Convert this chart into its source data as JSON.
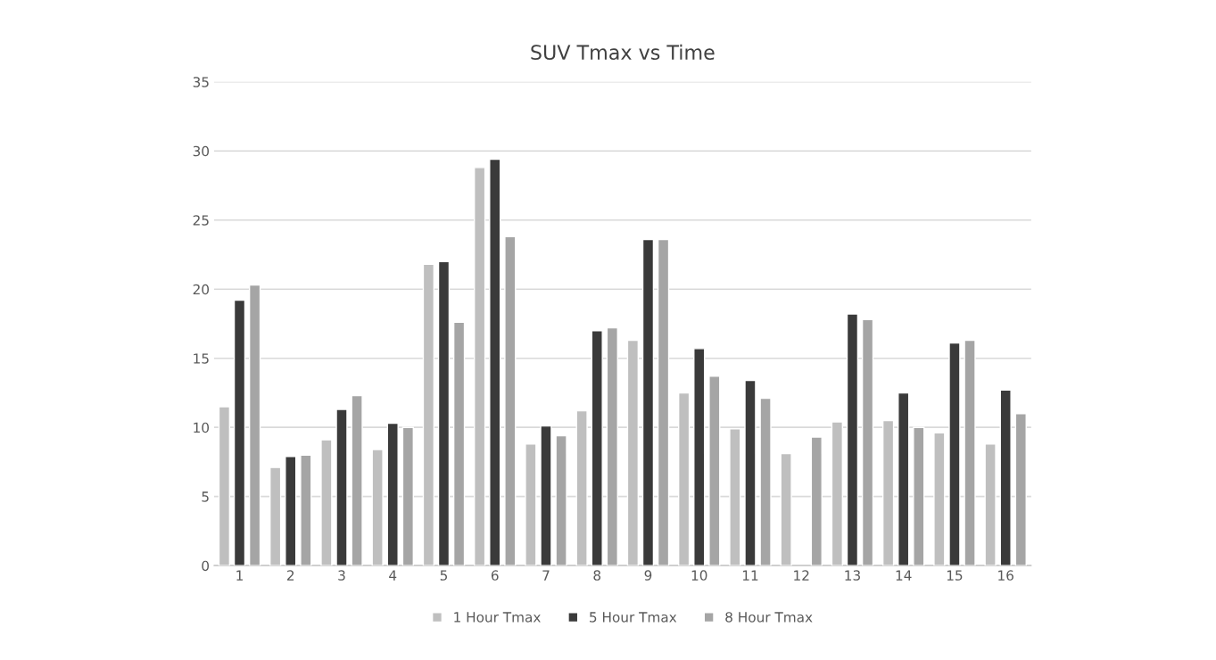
{
  "chart_data": {
    "type": "bar",
    "title": "SUV Tmax vs Time",
    "categories": [
      "1",
      "2",
      "3",
      "4",
      "5",
      "6",
      "7",
      "8",
      "9",
      "10",
      "11",
      "12",
      "13",
      "14",
      "15",
      "16"
    ],
    "series": [
      {
        "name": "1 Hour Tmax",
        "color": "#bfbfbf",
        "values": [
          11.5,
          7.1,
          9.1,
          8.4,
          21.8,
          28.8,
          8.8,
          11.2,
          16.3,
          12.5,
          9.9,
          8.1,
          10.4,
          10.5,
          9.6,
          8.8
        ]
      },
      {
        "name": "5 Hour Tmax",
        "color": "#3a3a3a",
        "values": [
          19.2,
          7.9,
          11.3,
          10.3,
          22.0,
          29.4,
          10.1,
          17.0,
          23.6,
          15.7,
          13.4,
          null,
          18.2,
          12.5,
          16.1,
          12.7
        ]
      },
      {
        "name": "8 Hour Tmax",
        "color": "#a5a5a5",
        "values": [
          20.3,
          8.0,
          12.3,
          10.0,
          17.6,
          23.8,
          9.4,
          17.2,
          23.6,
          13.7,
          12.1,
          9.3,
          17.8,
          10.0,
          16.3,
          11.0
        ]
      }
    ],
    "ylim": [
      0,
      35
    ],
    "yticks": [
      0,
      5,
      10,
      15,
      20,
      25,
      30,
      35
    ],
    "grid": "y",
    "legend": "bottom"
  }
}
